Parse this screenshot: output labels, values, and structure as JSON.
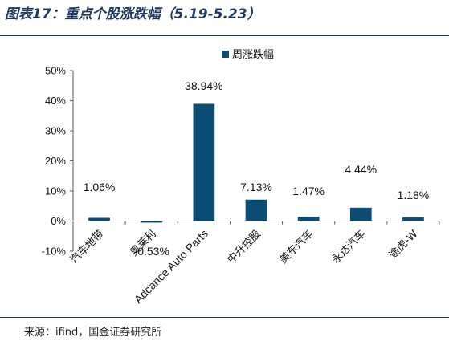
{
  "figure": {
    "title": "图表17：重点个股涨跌幅（5.19-5.23）",
    "source": "来源：ifind，国金证券研究所"
  },
  "colors": {
    "bar": "#0d4d73",
    "axis": "#555555",
    "rule": "#1f3a5f"
  },
  "chart_data": {
    "type": "bar",
    "title": "",
    "xlabel": "",
    "ylabel": "",
    "categories": [
      "汽车地带",
      "奥莱利",
      "Adcance Auto Parts",
      "中升控股",
      "美东汽车",
      "永达汽车",
      "途虎-W"
    ],
    "series": [
      {
        "name": "周涨跌幅",
        "values": [
          1.06,
          -0.53,
          38.94,
          7.13,
          1.47,
          4.44,
          1.18
        ],
        "labels": [
          "1.06%",
          "-0.53%",
          "38.94%",
          "7.13%",
          "1.47%",
          "4.44%",
          "1.18%"
        ]
      }
    ],
    "ylim": [
      -10,
      50
    ],
    "yticks": [
      -10,
      0,
      10,
      20,
      30,
      40,
      50
    ],
    "ytick_labels": [
      "-10%",
      "0%",
      "10%",
      "20%",
      "30%",
      "40%",
      "50%"
    ],
    "grid": false,
    "legend_position": "top-center"
  }
}
